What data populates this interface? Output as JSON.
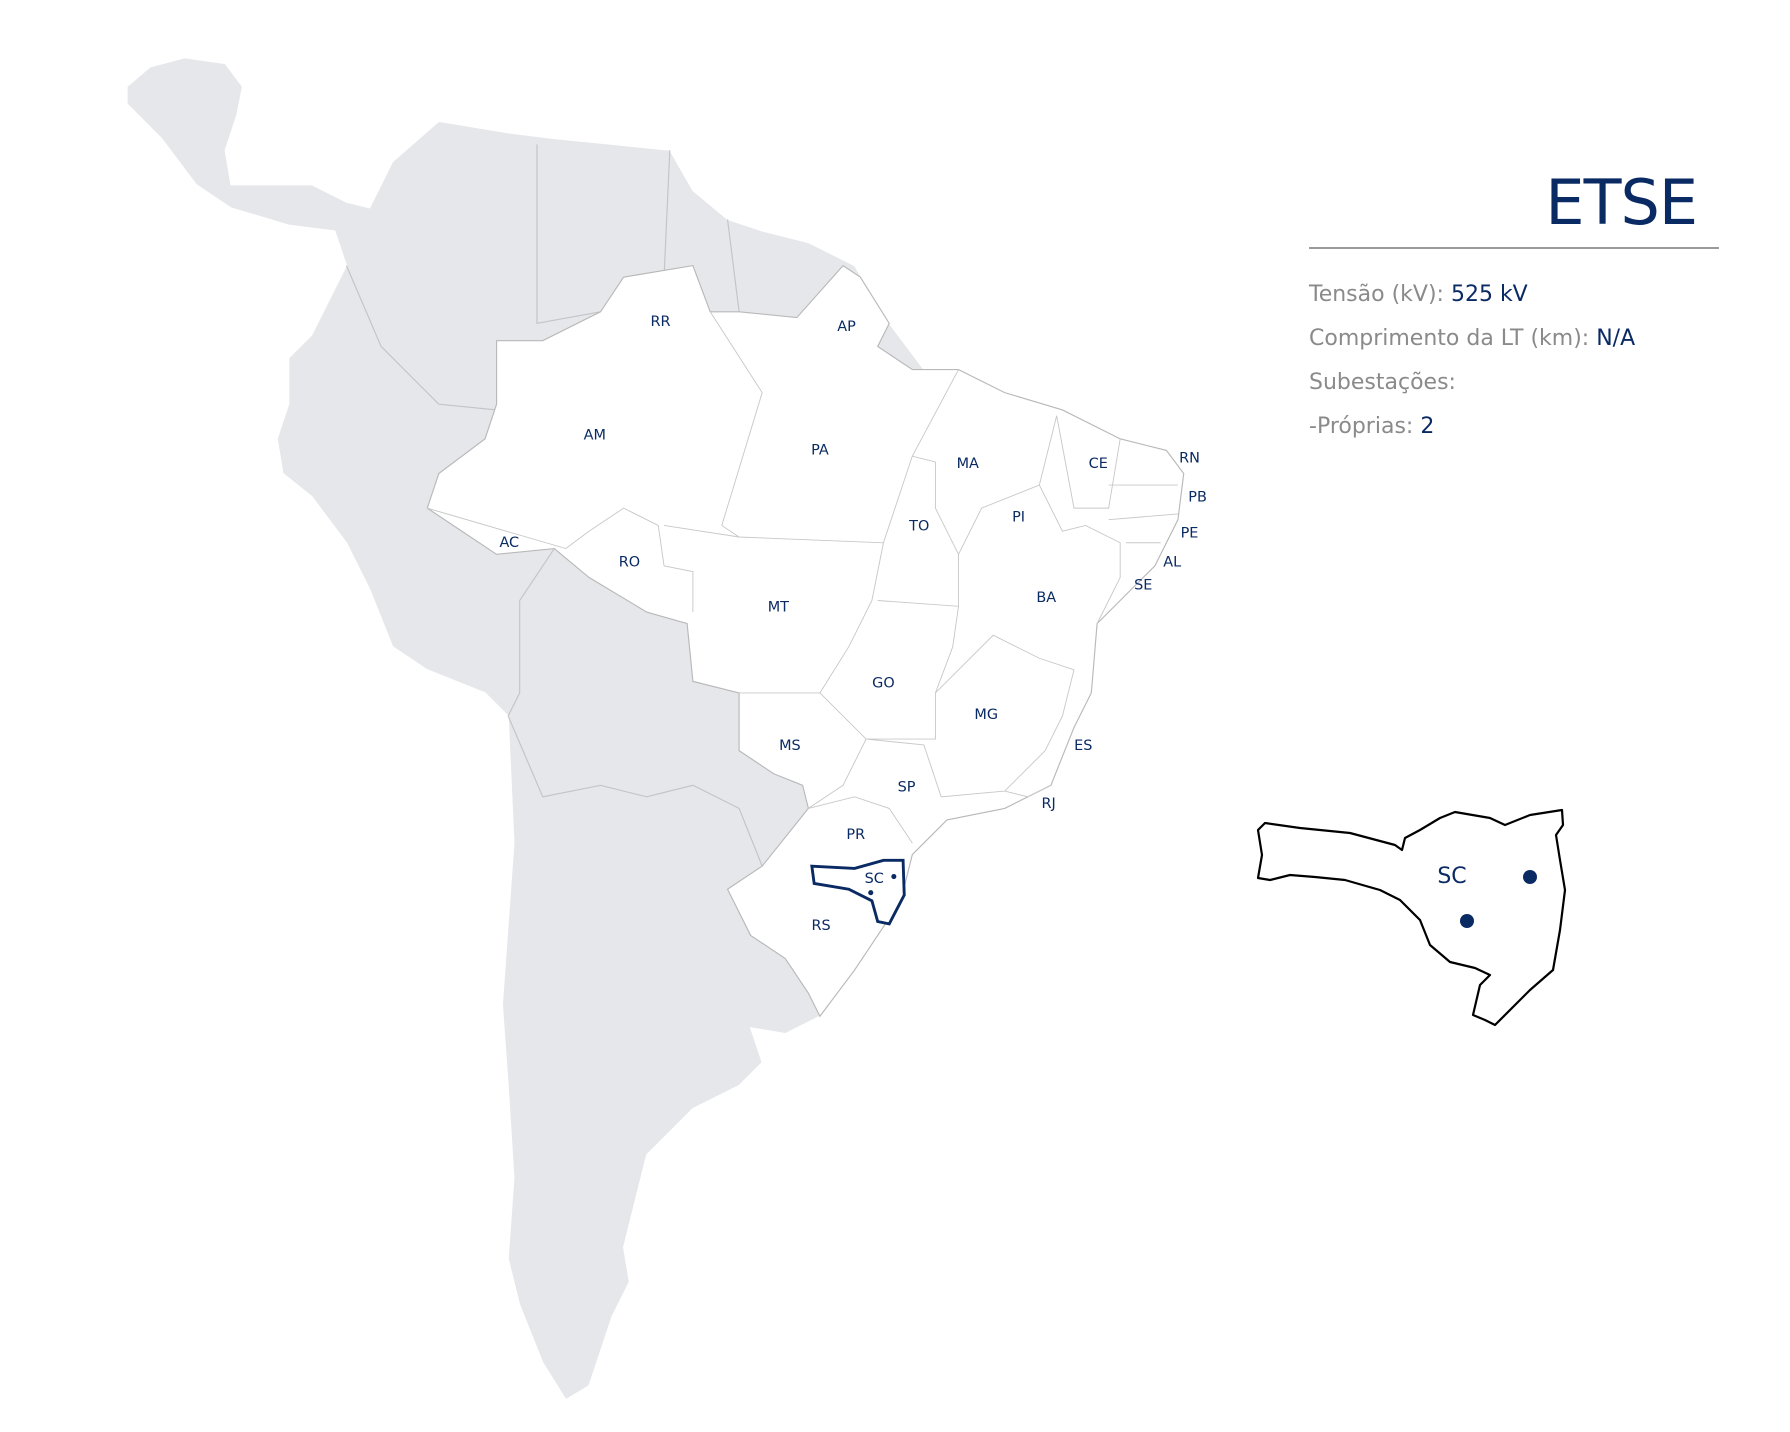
{
  "title": "ETSE",
  "info": {
    "tensao_label": "Tensão (kV):",
    "tensao_value": "525 kV",
    "comprimento_label": "Comprimento da LT (km):",
    "comprimento_value": "N/A",
    "subestacoes_label": "Subestações:",
    "proprias_label": "-Próprias:",
    "proprias_value": "2"
  },
  "map": {
    "highlighted_state": "SC",
    "colors": {
      "highlight": "#0a2a63",
      "land": "#e6e7ea",
      "brazil": "#ffffff",
      "border": "#b9b9b9"
    },
    "state_labels": [
      "RR",
      "AP",
      "AM",
      "PA",
      "MA",
      "CE",
      "RN",
      "PB",
      "PE",
      "AL",
      "SE",
      "PI",
      "TO",
      "AC",
      "RO",
      "MT",
      "BA",
      "GO",
      "MG",
      "MS",
      "ES",
      "SP",
      "RJ",
      "PR",
      "SC",
      "RS"
    ]
  },
  "inset": {
    "label": "SC",
    "substation_count": 2
  }
}
